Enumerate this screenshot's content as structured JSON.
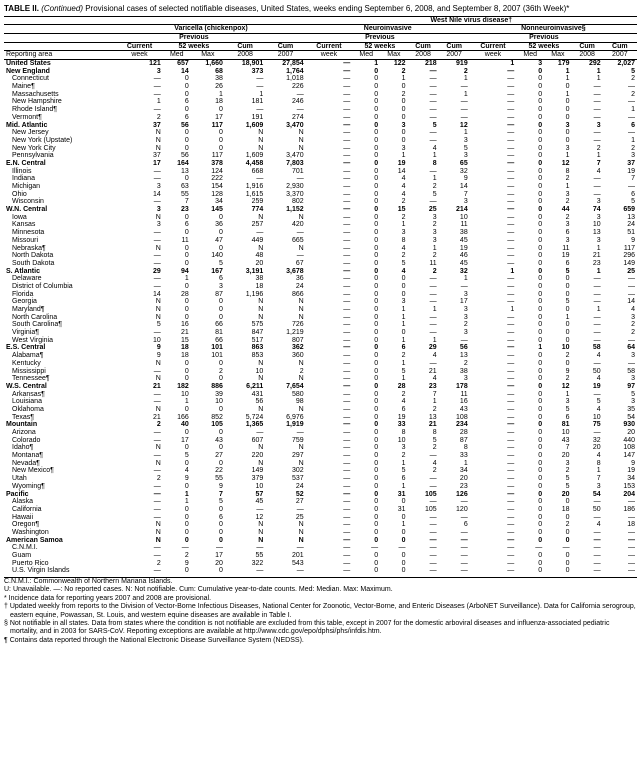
{
  "title_prefix": "TABLE II. ",
  "title_italic": "(Continued)",
  "title_rest": " Provisional cases of selected notifiable diseases, United States, weeks ending September 6, 2008, and September 8, 2007 (36th Week)*",
  "super_header": "West Nile virus disease†",
  "group_headers": [
    "Varicella (chickenpox)",
    "Neuroinvasive",
    "Nonneuroinvasive§"
  ],
  "sub_header": "Previous",
  "col_current": "Current",
  "col_week": "week",
  "col_52": "52 weeks",
  "col_med": "Med",
  "col_max": "Max",
  "col_cum": "Cum",
  "col_y1": "2008",
  "col_y2": "2007",
  "reporting_area": "Reporting area",
  "rows": [
    {
      "n": "United States",
      "b": 1,
      "v": [
        "121",
        "657",
        "1,660",
        "18,901",
        "27,854",
        "—",
        "1",
        "122",
        "218",
        "919",
        "1",
        "3",
        "179",
        "292",
        "2,027"
      ]
    },
    {
      "n": "New England",
      "b": 1,
      "v": [
        "3",
        "14",
        "68",
        "373",
        "1,764",
        "—",
        "0",
        "2",
        "—",
        "2",
        "—",
        "0",
        "1",
        "1",
        "5"
      ]
    },
    {
      "n": "Connecticut",
      "v": [
        "—",
        "0",
        "38",
        "—",
        "1,018",
        "—",
        "0",
        "1",
        "—",
        "1",
        "—",
        "0",
        "1",
        "1",
        "2"
      ]
    },
    {
      "n": "Maine¶",
      "v": [
        "—",
        "0",
        "26",
        "—",
        "226",
        "—",
        "0",
        "0",
        "—",
        "—",
        "—",
        "0",
        "0",
        "—",
        "—"
      ]
    },
    {
      "n": "Massachusetts",
      "v": [
        "—",
        "0",
        "1",
        "1",
        "—",
        "—",
        "0",
        "2",
        "—",
        "1",
        "—",
        "0",
        "1",
        "—",
        "2"
      ]
    },
    {
      "n": "New Hampshire",
      "v": [
        "1",
        "6",
        "18",
        "181",
        "246",
        "—",
        "0",
        "0",
        "—",
        "—",
        "—",
        "0",
        "0",
        "—",
        "—"
      ]
    },
    {
      "n": "Rhode Island¶",
      "v": [
        "—",
        "0",
        "0",
        "—",
        "—",
        "—",
        "0",
        "0",
        "—",
        "—",
        "—",
        "0",
        "0",
        "—",
        "1"
      ]
    },
    {
      "n": "Vermont¶",
      "v": [
        "2",
        "6",
        "17",
        "191",
        "274",
        "—",
        "0",
        "0",
        "—",
        "—",
        "—",
        "0",
        "0",
        "—",
        "—"
      ]
    },
    {
      "n": "Mid. Atlantic",
      "b": 1,
      "v": [
        "37",
        "56",
        "117",
        "1,609",
        "3,470",
        "—",
        "0",
        "3",
        "5",
        "12",
        "—",
        "0",
        "3",
        "3",
        "6"
      ]
    },
    {
      "n": "New Jersey",
      "v": [
        "N",
        "0",
        "0",
        "N",
        "N",
        "—",
        "0",
        "0",
        "—",
        "1",
        "—",
        "0",
        "0",
        "—",
        "—"
      ]
    },
    {
      "n": "New York (Upstate)",
      "v": [
        "N",
        "0",
        "0",
        "N",
        "N",
        "—",
        "0",
        "0",
        "—",
        "3",
        "—",
        "0",
        "0",
        "—",
        "1"
      ]
    },
    {
      "n": "New York City",
      "v": [
        "N",
        "0",
        "0",
        "N",
        "N",
        "—",
        "0",
        "3",
        "4",
        "5",
        "—",
        "0",
        "3",
        "2",
        "2"
      ]
    },
    {
      "n": "Pennsylvania",
      "v": [
        "37",
        "56",
        "117",
        "1,609",
        "3,470",
        "—",
        "0",
        "1",
        "1",
        "3",
        "—",
        "0",
        "1",
        "1",
        "3"
      ]
    },
    {
      "n": "E.N. Central",
      "b": 1,
      "v": [
        "17",
        "164",
        "378",
        "4,458",
        "7,803",
        "—",
        "0",
        "19",
        "8",
        "65",
        "—",
        "0",
        "12",
        "7",
        "37"
      ]
    },
    {
      "n": "Illinois",
      "v": [
        "—",
        "13",
        "124",
        "668",
        "701",
        "—",
        "0",
        "14",
        "—",
        "32",
        "—",
        "0",
        "8",
        "4",
        "19"
      ]
    },
    {
      "n": "Indiana",
      "v": [
        "—",
        "0",
        "222",
        "—",
        "—",
        "—",
        "0",
        "4",
        "1",
        "9",
        "—",
        "0",
        "2",
        "—",
        "7"
      ]
    },
    {
      "n": "Michigan",
      "v": [
        "3",
        "63",
        "154",
        "1,916",
        "2,930",
        "—",
        "0",
        "4",
        "2",
        "14",
        "—",
        "0",
        "1",
        "—",
        "—"
      ]
    },
    {
      "n": "Ohio",
      "v": [
        "14",
        "55",
        "128",
        "1,615",
        "3,370",
        "—",
        "0",
        "4",
        "5",
        "7",
        "—",
        "0",
        "3",
        "—",
        "6"
      ]
    },
    {
      "n": "Wisconsin",
      "v": [
        "—",
        "7",
        "34",
        "259",
        "802",
        "—",
        "0",
        "2",
        "—",
        "3",
        "—",
        "0",
        "2",
        "3",
        "5"
      ]
    },
    {
      "n": "W.N. Central",
      "b": 1,
      "v": [
        "3",
        "23",
        "145",
        "774",
        "1,152",
        "—",
        "0",
        "15",
        "25",
        "214",
        "—",
        "0",
        "44",
        "74",
        "659"
      ]
    },
    {
      "n": "Iowa",
      "v": [
        "N",
        "0",
        "0",
        "N",
        "N",
        "—",
        "0",
        "2",
        "3",
        "10",
        "—",
        "0",
        "2",
        "3",
        "13"
      ]
    },
    {
      "n": "Kansas",
      "v": [
        "3",
        "6",
        "36",
        "257",
        "420",
        "—",
        "0",
        "1",
        "2",
        "11",
        "—",
        "0",
        "3",
        "10",
        "24"
      ]
    },
    {
      "n": "Minnesota",
      "v": [
        "—",
        "0",
        "0",
        "—",
        "—",
        "—",
        "0",
        "3",
        "3",
        "38",
        "—",
        "0",
        "6",
        "13",
        "51"
      ]
    },
    {
      "n": "Missouri",
      "v": [
        "—",
        "11",
        "47",
        "449",
        "665",
        "—",
        "0",
        "8",
        "3",
        "45",
        "—",
        "0",
        "3",
        "3",
        "9"
      ]
    },
    {
      "n": "Nebraska¶",
      "v": [
        "N",
        "0",
        "0",
        "N",
        "N",
        "—",
        "0",
        "4",
        "1",
        "19",
        "—",
        "0",
        "11",
        "1",
        "117"
      ]
    },
    {
      "n": "North Dakota",
      "v": [
        "—",
        "0",
        "140",
        "48",
        "—",
        "—",
        "0",
        "2",
        "2",
        "46",
        "—",
        "0",
        "19",
        "21",
        "296"
      ]
    },
    {
      "n": "South Dakota",
      "v": [
        "—",
        "0",
        "5",
        "20",
        "67",
        "—",
        "0",
        "5",
        "11",
        "45",
        "—",
        "0",
        "6",
        "23",
        "149"
      ]
    },
    {
      "n": "S. Atlantic",
      "b": 1,
      "v": [
        "29",
        "94",
        "167",
        "3,191",
        "3,678",
        "—",
        "0",
        "4",
        "2",
        "32",
        "1",
        "0",
        "5",
        "1",
        "25"
      ]
    },
    {
      "n": "Delaware",
      "v": [
        "—",
        "1",
        "6",
        "38",
        "36",
        "—",
        "0",
        "0",
        "—",
        "1",
        "—",
        "0",
        "0",
        "—",
        "—"
      ]
    },
    {
      "n": "District of Columbia",
      "v": [
        "—",
        "0",
        "3",
        "18",
        "24",
        "—",
        "0",
        "0",
        "—",
        "—",
        "—",
        "0",
        "0",
        "—",
        "—"
      ]
    },
    {
      "n": "Florida",
      "v": [
        "14",
        "28",
        "87",
        "1,196",
        "866",
        "—",
        "0",
        "0",
        "—",
        "3",
        "—",
        "0",
        "0",
        "—",
        "—"
      ]
    },
    {
      "n": "Georgia",
      "v": [
        "N",
        "0",
        "0",
        "N",
        "N",
        "—",
        "0",
        "3",
        "—",
        "17",
        "—",
        "0",
        "5",
        "—",
        "14"
      ]
    },
    {
      "n": "Maryland¶",
      "v": [
        "N",
        "0",
        "0",
        "N",
        "N",
        "—",
        "0",
        "1",
        "1",
        "3",
        "1",
        "0",
        "0",
        "1",
        "4"
      ]
    },
    {
      "n": "North Carolina",
      "v": [
        "N",
        "0",
        "0",
        "N",
        "N",
        "—",
        "0",
        "1",
        "—",
        "3",
        "—",
        "0",
        "1",
        "—",
        "3"
      ]
    },
    {
      "n": "South Carolina¶",
      "v": [
        "5",
        "16",
        "66",
        "575",
        "726",
        "—",
        "0",
        "1",
        "—",
        "2",
        "—",
        "0",
        "0",
        "—",
        "2"
      ]
    },
    {
      "n": "Virginia¶",
      "v": [
        "—",
        "21",
        "81",
        "847",
        "1,219",
        "—",
        "0",
        "0",
        "—",
        "3",
        "—",
        "0",
        "0",
        "—",
        "2"
      ]
    },
    {
      "n": "West Virginia",
      "v": [
        "10",
        "15",
        "66",
        "517",
        "807",
        "—",
        "0",
        "1",
        "1",
        "—",
        "—",
        "0",
        "0",
        "—",
        "—"
      ]
    },
    {
      "n": "E.S. Central",
      "b": 1,
      "v": [
        "9",
        "18",
        "101",
        "863",
        "362",
        "—",
        "0",
        "6",
        "29",
        "56",
        "—",
        "1",
        "10",
        "58",
        "64"
      ]
    },
    {
      "n": "Alabama¶",
      "v": [
        "9",
        "18",
        "101",
        "853",
        "360",
        "—",
        "0",
        "2",
        "4",
        "13",
        "—",
        "0",
        "2",
        "4",
        "3"
      ]
    },
    {
      "n": "Kentucky",
      "v": [
        "N",
        "0",
        "0",
        "N",
        "N",
        "—",
        "0",
        "1",
        "—",
        "2",
        "—",
        "0",
        "0",
        "—",
        "—"
      ]
    },
    {
      "n": "Mississippi",
      "v": [
        "—",
        "0",
        "2",
        "10",
        "2",
        "—",
        "0",
        "5",
        "21",
        "38",
        "—",
        "0",
        "9",
        "50",
        "58"
      ]
    },
    {
      "n": "Tennessee¶",
      "v": [
        "N",
        "0",
        "0",
        "N",
        "N",
        "—",
        "0",
        "1",
        "4",
        "3",
        "—",
        "0",
        "2",
        "4",
        "3"
      ]
    },
    {
      "n": "W.S. Central",
      "b": 1,
      "v": [
        "21",
        "182",
        "886",
        "6,211",
        "7,654",
        "—",
        "0",
        "28",
        "23",
        "178",
        "—",
        "0",
        "12",
        "19",
        "97"
      ]
    },
    {
      "n": "Arkansas¶",
      "v": [
        "—",
        "10",
        "39",
        "431",
        "580",
        "—",
        "0",
        "2",
        "7",
        "11",
        "—",
        "0",
        "1",
        "—",
        "5"
      ]
    },
    {
      "n": "Louisiana",
      "v": [
        "—",
        "1",
        "10",
        "56",
        "98",
        "—",
        "0",
        "4",
        "1",
        "16",
        "—",
        "0",
        "3",
        "5",
        "3"
      ]
    },
    {
      "n": "Oklahoma",
      "v": [
        "N",
        "0",
        "0",
        "N",
        "N",
        "—",
        "0",
        "6",
        "2",
        "43",
        "—",
        "0",
        "5",
        "4",
        "35"
      ]
    },
    {
      "n": "Texas¶",
      "v": [
        "21",
        "166",
        "852",
        "5,724",
        "6,976",
        "—",
        "0",
        "19",
        "13",
        "108",
        "—",
        "0",
        "6",
        "10",
        "54"
      ]
    },
    {
      "n": "Mountain",
      "b": 1,
      "v": [
        "2",
        "40",
        "105",
        "1,365",
        "1,919",
        "—",
        "0",
        "33",
        "21",
        "234",
        "—",
        "0",
        "81",
        "75",
        "930"
      ]
    },
    {
      "n": "Arizona",
      "v": [
        "—",
        "0",
        "0",
        "—",
        "—",
        "—",
        "0",
        "8",
        "8",
        "28",
        "—",
        "0",
        "10",
        "—",
        "20"
      ]
    },
    {
      "n": "Colorado",
      "v": [
        "—",
        "17",
        "43",
        "607",
        "759",
        "—",
        "0",
        "10",
        "5",
        "87",
        "—",
        "0",
        "43",
        "32",
        "440"
      ]
    },
    {
      "n": "Idaho¶",
      "v": [
        "N",
        "0",
        "0",
        "N",
        "N",
        "—",
        "0",
        "3",
        "2",
        "8",
        "—",
        "0",
        "7",
        "20",
        "108"
      ]
    },
    {
      "n": "Montana¶",
      "v": [
        "—",
        "5",
        "27",
        "220",
        "297",
        "—",
        "0",
        "2",
        "—",
        "33",
        "—",
        "0",
        "20",
        "4",
        "147"
      ]
    },
    {
      "n": "Nevada¶",
      "v": [
        "N",
        "0",
        "0",
        "N",
        "N",
        "—",
        "0",
        "1",
        "4",
        "1",
        "—",
        "0",
        "3",
        "8",
        "9"
      ]
    },
    {
      "n": "New Mexico¶",
      "v": [
        "—",
        "4",
        "22",
        "149",
        "302",
        "—",
        "0",
        "5",
        "2",
        "34",
        "—",
        "0",
        "2",
        "1",
        "19"
      ]
    },
    {
      "n": "Utah",
      "v": [
        "2",
        "9",
        "55",
        "379",
        "537",
        "—",
        "0",
        "6",
        "—",
        "20",
        "—",
        "0",
        "5",
        "7",
        "34"
      ]
    },
    {
      "n": "Wyoming¶",
      "v": [
        "—",
        "0",
        "9",
        "10",
        "24",
        "—",
        "0",
        "1",
        "—",
        "23",
        "—",
        "0",
        "5",
        "3",
        "153"
      ]
    },
    {
      "n": "Pacific",
      "b": 1,
      "v": [
        "—",
        "1",
        "7",
        "57",
        "52",
        "—",
        "0",
        "31",
        "105",
        "126",
        "—",
        "0",
        "20",
        "54",
        "204"
      ]
    },
    {
      "n": "Alaska",
      "v": [
        "—",
        "1",
        "5",
        "45",
        "27",
        "—",
        "0",
        "0",
        "—",
        "—",
        "—",
        "0",
        "0",
        "—",
        "—"
      ]
    },
    {
      "n": "California",
      "v": [
        "—",
        "0",
        "0",
        "—",
        "—",
        "—",
        "0",
        "31",
        "105",
        "120",
        "—",
        "0",
        "18",
        "50",
        "186"
      ]
    },
    {
      "n": "Hawaii",
      "v": [
        "—",
        "0",
        "6",
        "12",
        "25",
        "—",
        "0",
        "0",
        "—",
        "—",
        "—",
        "0",
        "0",
        "—",
        "—"
      ]
    },
    {
      "n": "Oregon¶",
      "v": [
        "N",
        "0",
        "0",
        "N",
        "N",
        "—",
        "0",
        "1",
        "—",
        "6",
        "—",
        "0",
        "2",
        "4",
        "18"
      ]
    },
    {
      "n": "Washington",
      "v": [
        "N",
        "0",
        "0",
        "N",
        "N",
        "—",
        "0",
        "0",
        "—",
        "—",
        "—",
        "0",
        "0",
        "—",
        "—"
      ]
    },
    {
      "n": "American Samoa",
      "b": 1,
      "v": [
        "N",
        "0",
        "0",
        "N",
        "N",
        "—",
        "0",
        "0",
        "—",
        "—",
        "—",
        "0",
        "0",
        "—",
        "—"
      ]
    },
    {
      "n": "C.N.M.I.",
      "v": [
        "—",
        "—",
        "—",
        "—",
        "—",
        "—",
        "—",
        "—",
        "—",
        "—",
        "—",
        "—",
        "—",
        "—",
        "—"
      ]
    },
    {
      "n": "Guam",
      "v": [
        "—",
        "2",
        "17",
        "55",
        "201",
        "—",
        "0",
        "0",
        "—",
        "—",
        "—",
        "0",
        "0",
        "—",
        "—"
      ]
    },
    {
      "n": "Puerto Rico",
      "v": [
        "2",
        "9",
        "20",
        "322",
        "543",
        "—",
        "0",
        "0",
        "—",
        "—",
        "—",
        "0",
        "0",
        "—",
        "—"
      ]
    },
    {
      "n": "U.S. Virgin Islands",
      "v": [
        "—",
        "0",
        "0",
        "—",
        "—",
        "—",
        "0",
        "0",
        "—",
        "—",
        "—",
        "0",
        "0",
        "—",
        "—"
      ]
    }
  ],
  "footnotes": [
    "C.N.M.I.: Commonwealth of Northern Mariana Islands.",
    "U: Unavailable.   —: No reported cases.   N: Not notifiable.   Cum: Cumulative year-to-date counts.   Med: Median.   Max: Maximum.",
    "* Incidence data for reporting years 2007 and 2008 are provisional.",
    "† Updated weekly from reports to the Division of Vector-Borne Infectious Diseases, National Center for Zoonotic, Vector-Borne, and Enteric Diseases (ArboNET Surveillance). Data for California serogroup, eastern equine, Powassan, St. Louis, and western equine diseases are available in Table I.",
    "§ Not notifiable in all states. Data from states where the condition is not notifiable are excluded from this table, except in 2007 for the domestic arboviral diseases and influenza-associated pediatric mortality, and in 2003 for SARS-CoV. Reporting exceptions are available at http://www.cdc.gov/epo/dphsi/phs/infdis.htm.",
    "¶ Contains data reported through the National Electronic Disease Surveillance System (NEDSS)."
  ]
}
